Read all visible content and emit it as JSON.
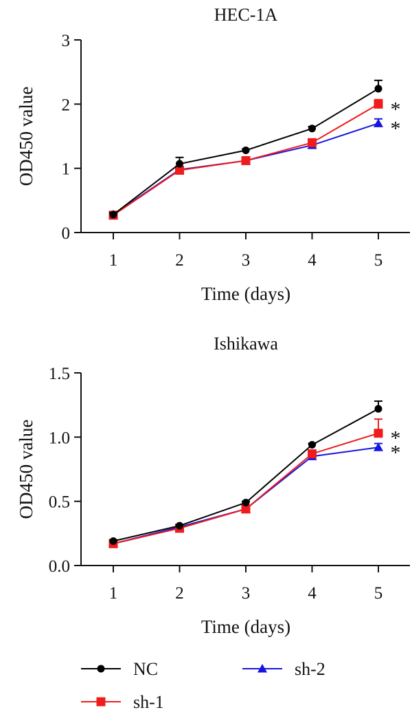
{
  "chart_data": [
    {
      "type": "line",
      "title": "HEC-1A",
      "xlabel": "Time (days)",
      "ylabel": "OD450 value",
      "x": [
        1,
        2,
        3,
        4,
        5
      ],
      "x_tick_labels": [
        "1",
        "2",
        "3",
        "4",
        "5"
      ],
      "ylim": [
        0,
        3
      ],
      "y_ticks": [
        0,
        1,
        2,
        3
      ],
      "y_tick_labels": [
        "0",
        "1",
        "2",
        "3"
      ],
      "grid": false,
      "series": [
        {
          "name": "NC",
          "color": "#000000",
          "marker": "circle",
          "values": [
            0.28,
            1.07,
            1.28,
            1.62,
            2.24
          ],
          "errors": [
            0.03,
            0.1,
            0.02,
            0.03,
            0.13
          ]
        },
        {
          "name": "sh-1",
          "color": "#ee1c1c",
          "marker": "square",
          "values": [
            0.27,
            0.97,
            1.12,
            1.4,
            2.0
          ],
          "errors": [
            0.02,
            0.03,
            0.03,
            0.04,
            0.07
          ]
        },
        {
          "name": "sh-2",
          "color": "#1515e0",
          "marker": "triangle",
          "values": [
            0.28,
            0.98,
            1.12,
            1.36,
            1.7
          ],
          "errors": [
            0.02,
            0.03,
            0.02,
            0.03,
            0.07
          ]
        }
      ],
      "annotations": [
        {
          "series": "sh-1",
          "x": 5,
          "text": "*"
        },
        {
          "series": "sh-2",
          "x": 5,
          "text": "*"
        }
      ]
    },
    {
      "type": "line",
      "title": "Ishikawa",
      "xlabel": "Time (days)",
      "ylabel": "OD450 value",
      "x": [
        1,
        2,
        3,
        4,
        5
      ],
      "x_tick_labels": [
        "1",
        "2",
        "3",
        "4",
        "5"
      ],
      "ylim": [
        0,
        1.5
      ],
      "y_ticks": [
        0,
        0.5,
        1.0,
        1.5
      ],
      "y_tick_labels": [
        "0.0",
        "0.5",
        "1.0",
        "1.5"
      ],
      "grid": false,
      "series": [
        {
          "name": "NC",
          "color": "#000000",
          "marker": "circle",
          "values": [
            0.19,
            0.31,
            0.49,
            0.94,
            1.22
          ],
          "errors": [
            0.01,
            0.01,
            0.01,
            0.01,
            0.06
          ]
        },
        {
          "name": "sh-1",
          "color": "#ee1c1c",
          "marker": "square",
          "values": [
            0.17,
            0.29,
            0.44,
            0.87,
            1.03
          ],
          "errors": [
            0.01,
            0.01,
            0.01,
            0.02,
            0.11
          ]
        },
        {
          "name": "sh-2",
          "color": "#1515e0",
          "marker": "triangle",
          "values": [
            0.17,
            0.3,
            0.44,
            0.85,
            0.92
          ],
          "errors": [
            0.01,
            0.01,
            0.01,
            0.02,
            0.03
          ]
        }
      ],
      "annotations": [
        {
          "series": "sh-1",
          "x": 5,
          "text": "*"
        },
        {
          "series": "sh-2",
          "x": 5,
          "text": "*"
        }
      ]
    }
  ],
  "legend": {
    "placement": "bottom",
    "entries": [
      {
        "name": "NC",
        "color": "#000000",
        "marker": "circle"
      },
      {
        "name": "sh-2",
        "color": "#1515e0",
        "marker": "triangle"
      },
      {
        "name": "sh-1",
        "color": "#ee1c1c",
        "marker": "square"
      }
    ]
  }
}
